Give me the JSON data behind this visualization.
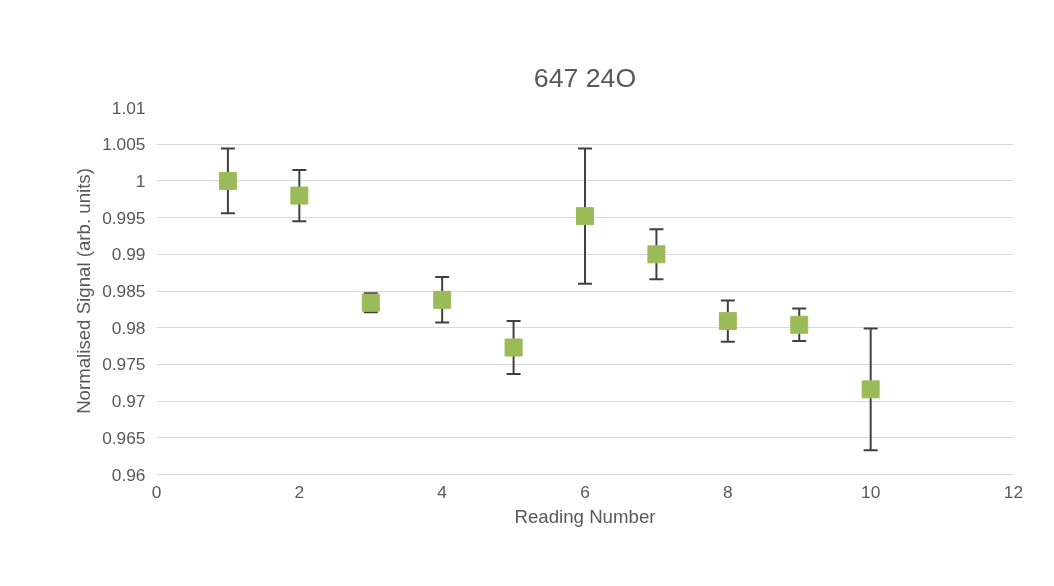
{
  "chart_data": {
    "type": "scatter",
    "title": "647 24O",
    "xlabel": "Reading Number",
    "ylabel": "Normalised Signal (arb. units)",
    "x": [
      1,
      2,
      3,
      4,
      5,
      6,
      7,
      8,
      9,
      10
    ],
    "values": [
      1.0,
      0.998,
      0.9834,
      0.9838,
      0.9773,
      0.9952,
      0.99,
      0.9809,
      0.9804,
      0.9716
    ],
    "errors": [
      0.0044,
      0.0035,
      0.0013,
      0.0031,
      0.0036,
      0.0092,
      0.0034,
      0.0028,
      0.0022,
      0.0083
    ],
    "color": "#9bbb59",
    "marker": "square",
    "xlim": [
      0,
      12
    ],
    "xticks": [
      0,
      2,
      4,
      6,
      8,
      10,
      12
    ],
    "ylim": [
      0.96,
      1.01
    ],
    "yticks": [
      0.96,
      0.965,
      0.97,
      0.975,
      0.98,
      0.985,
      0.99,
      0.995,
      1,
      1.005,
      1.01
    ],
    "grid": "y"
  }
}
